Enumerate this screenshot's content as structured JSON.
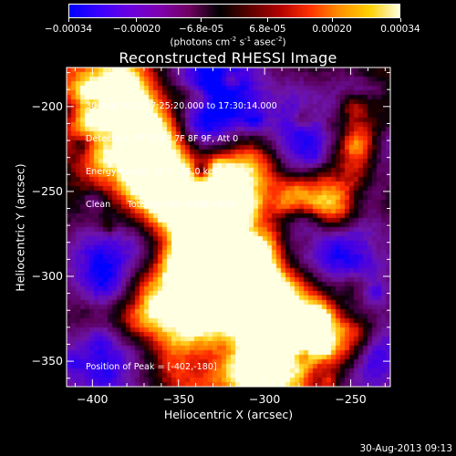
{
  "colorbar": {
    "ticks": [
      "-0.00034",
      "-0.00020",
      "-6.8e-05",
      "6.8e-05",
      "0.00020",
      "0.00034"
    ],
    "tick_values": [
      -0.00034,
      -0.0002,
      -6.8e-05,
      6.8e-05,
      0.0002,
      0.00034
    ],
    "unit_label": "(photons cm",
    "unit_exp1": "-2",
    "unit_mid": " s",
    "unit_exp2": "-1",
    "unit_tail": " asec",
    "unit_exp3": "-2",
    "unit_end": ")",
    "colors": [
      "#0000ff",
      "#3a00ff",
      "#6a00e0",
      "#8000b0",
      "#700060",
      "#000000",
      "#5a0000",
      "#b00000",
      "#ff3000",
      "#ff9000",
      "#ffd000",
      "#ffffe0"
    ]
  },
  "chart_data": {
    "type": "heatmap",
    "title": "Reconstructed RHESSI Image",
    "xlabel": "Heliocentric X (arcsec)",
    "ylabel": "Heliocentric Y (arcsec)",
    "xlim": [
      -415,
      -227
    ],
    "ylim": [
      -365,
      -177
    ],
    "x_ticks": [
      -400,
      -350,
      -300,
      -250
    ],
    "y_ticks": [
      -200,
      -250,
      -300,
      -350
    ],
    "x_tick_labels": [
      "−400",
      "−350",
      "−300",
      "−250"
    ],
    "y_tick_labels": [
      "−200",
      "−250",
      "−300",
      "−350"
    ],
    "annotation_lines": [
      "30-Aug-2013 17:25:20.000 to 17:30:14.000",
      "Detectors: 3F 5F 6F 7F 8F 9F, Att 0",
      "Energy Range: 12.0 - 25.0 keV",
      "Clean      Total counts: 1.04E+004"
    ],
    "peak_label": "Position of Peak = [-402,-180]",
    "peak": [
      -402,
      -180
    ]
  },
  "footer": {
    "timestamp": "30-Aug-2013 09:13"
  }
}
